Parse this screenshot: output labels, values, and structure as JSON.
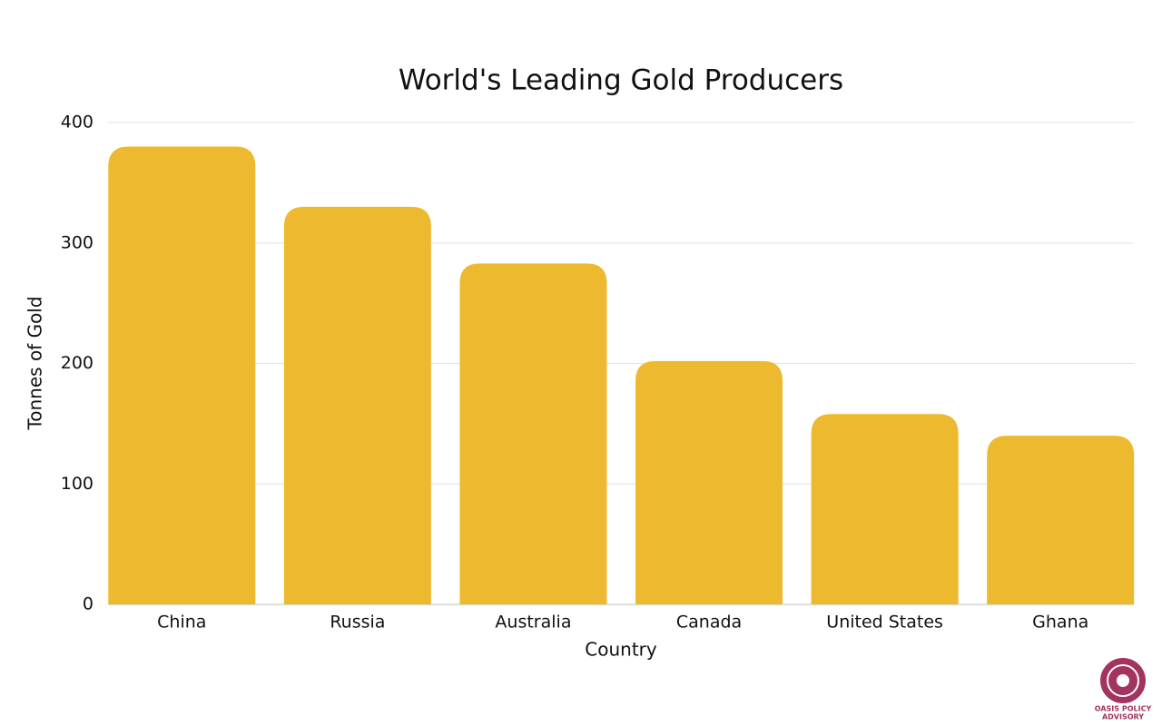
{
  "chart_data": {
    "type": "bar",
    "title": "World's Leading Gold Producers",
    "x_label": "Country",
    "y_label": "Tonnes of Gold",
    "categories": [
      "China",
      "Russia",
      "Australia",
      "Canada",
      "United States",
      "Ghana"
    ],
    "values": [
      380,
      330,
      283,
      202,
      158,
      140
    ],
    "color": "#EDB92E",
    "ylim": [
      0,
      400
    ],
    "yticks": [
      0,
      100,
      200,
      300,
      400
    ],
    "grid": true
  },
  "logo": {
    "lines": [
      "OASIS POLICY",
      "ADVISORY"
    ]
  }
}
